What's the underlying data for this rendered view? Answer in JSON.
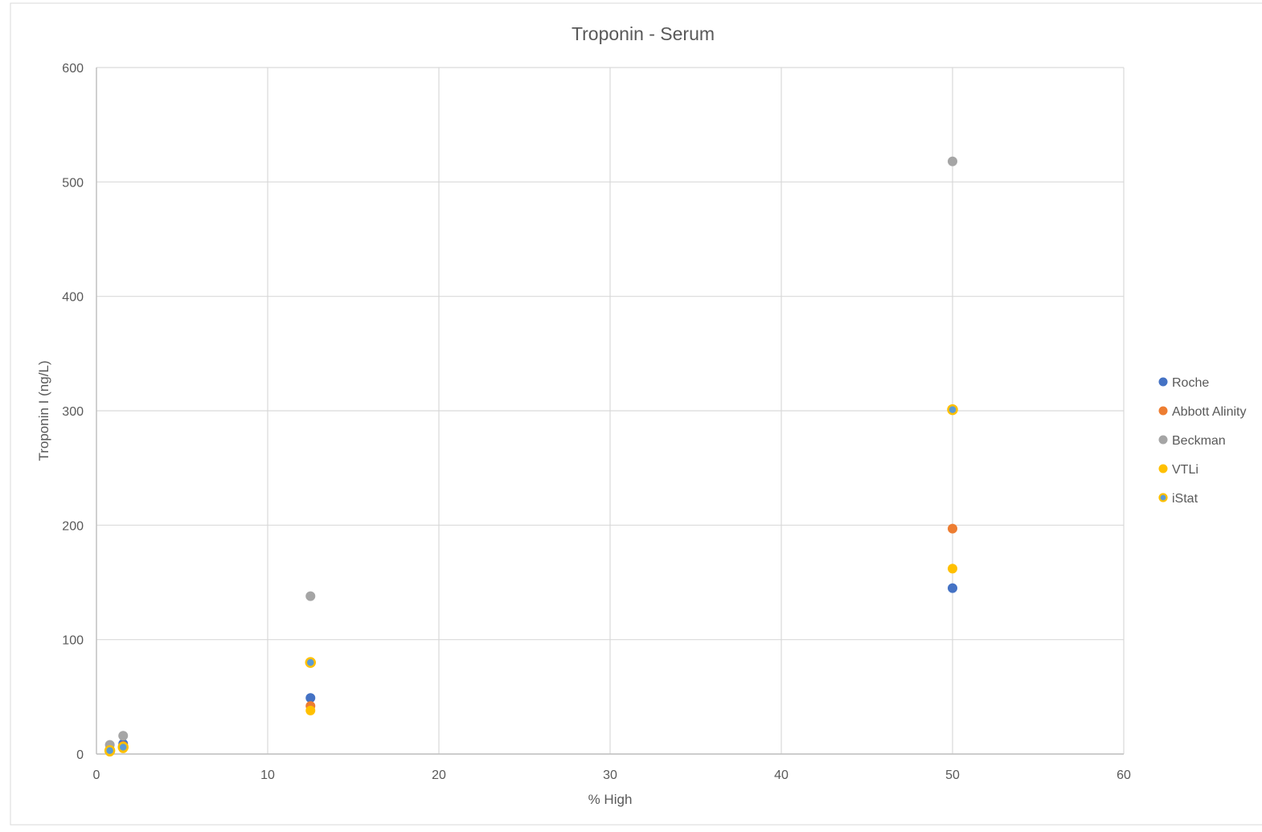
{
  "chart_data": {
    "type": "scatter",
    "title": "Troponin - Serum",
    "xlabel": "% High",
    "ylabel": "Troponin I (ng/L)",
    "xlim": [
      0,
      60
    ],
    "ylim": [
      0,
      600
    ],
    "x_ticks": [
      0,
      10,
      20,
      30,
      40,
      50,
      60
    ],
    "y_ticks": [
      0,
      100,
      200,
      300,
      400,
      500,
      600
    ],
    "grid": true,
    "legend_position": "right",
    "series": [
      {
        "name": "Roche",
        "color": "#4472C4",
        "marker": "circle",
        "points": [
          [
            0.78,
            4
          ],
          [
            1.56,
            9
          ],
          [
            12.5,
            49
          ],
          [
            50,
            145
          ]
        ]
      },
      {
        "name": "Abbott Alinity",
        "color": "#ED7D31",
        "marker": "circle",
        "points": [
          [
            0.78,
            3
          ],
          [
            1.56,
            7
          ],
          [
            12.5,
            42
          ],
          [
            50,
            197
          ]
        ]
      },
      {
        "name": "Beckman",
        "color": "#A5A5A5",
        "marker": "circle",
        "points": [
          [
            0.78,
            8
          ],
          [
            1.56,
            16
          ],
          [
            12.5,
            138
          ],
          [
            50,
            518
          ]
        ]
      },
      {
        "name": "VTLi",
        "color": "#FFC000",
        "marker": "circle",
        "points": [
          [
            0.78,
            2
          ],
          [
            1.56,
            5
          ],
          [
            12.5,
            38
          ],
          [
            50,
            162
          ]
        ]
      },
      {
        "name": "iStat",
        "color": "#FFC000",
        "inner_color": "#5B9BD5",
        "marker": "ringed-circle",
        "points": [
          [
            0.78,
            3
          ],
          [
            1.56,
            6
          ],
          [
            12.5,
            80
          ],
          [
            50,
            301
          ]
        ]
      }
    ]
  }
}
